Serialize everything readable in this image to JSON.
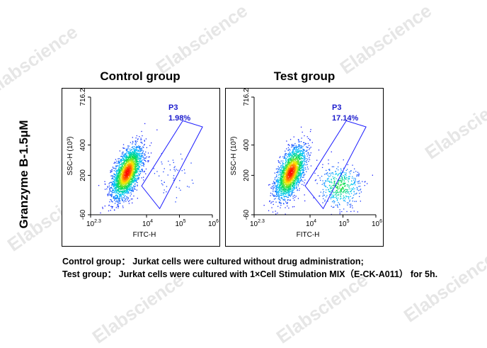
{
  "row_label": "Granzyme B-1.5μM",
  "watermark": "Elabscience",
  "axis": {
    "xlabel": "FITC-H",
    "ylabel": "SSC-H (10³)",
    "xticks": [
      {
        "base": "10",
        "exp": "2.3",
        "value": 2.3
      },
      {
        "base": "10",
        "exp": "4",
        "value": 4
      },
      {
        "base": "10",
        "exp": "5",
        "value": 5
      },
      {
        "base": "10",
        "exp": "6",
        "value": 6
      }
    ],
    "yticks": [
      "-60",
      "200",
      "400",
      "716.2"
    ],
    "xlim_log10": [
      2.3,
      6
    ],
    "ylim": [
      -60,
      716.2
    ]
  },
  "chart_data": [
    {
      "type": "scatter",
      "title": "Control group",
      "xlabel": "FITC-H",
      "ylabel": "SSC-H (10³)",
      "x_scale": "log",
      "xlim": [
        200,
        1000000
      ],
      "ylim": [
        -60,
        716.2
      ],
      "gate": {
        "name": "P3",
        "percent": "1.98%"
      },
      "populations": [
        {
          "center_log10_fitc": 3.4,
          "center_ssc": 220,
          "relative_size": 0.98
        },
        {
          "center_log10_fitc": 4.7,
          "center_ssc": 200,
          "relative_size": 0.02
        }
      ]
    },
    {
      "type": "scatter",
      "title": "Test group",
      "xlabel": "FITC-H",
      "ylabel": "SSC-H (10³)",
      "x_scale": "log",
      "xlim": [
        200,
        1000000
      ],
      "ylim": [
        -60,
        716.2
      ],
      "gate": {
        "name": "P3",
        "percent": "17.14%"
      },
      "populations": [
        {
          "center_log10_fitc": 3.4,
          "center_ssc": 220,
          "relative_size": 0.83
        },
        {
          "center_log10_fitc": 4.9,
          "center_ssc": 130,
          "relative_size": 0.17
        }
      ]
    }
  ],
  "captions": [
    "Control group： Jurkat cells were cultured without drug administration;",
    "Test group： Jurkat cells were cultured with 1×Cell Stimulation MIX（E-CK-A011） for 5h."
  ],
  "colors": {
    "gate": "#1a1aff",
    "label": "#1a1acc",
    "density_low": "#1a1aff",
    "density_high": "#ff0000"
  }
}
